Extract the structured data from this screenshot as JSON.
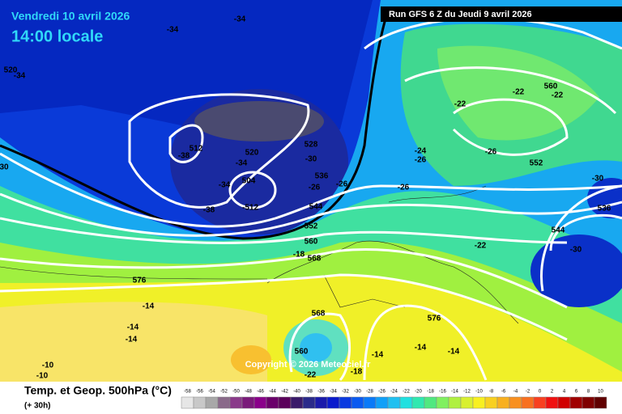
{
  "header": {
    "date": "Vendredi 10 avril 2026",
    "time": "14:00 locale",
    "run": "Run GFS 6 Z du Jeudi 9 avril 2026"
  },
  "copyright": "Copyright © 2026 Meteociel.fr",
  "footer": {
    "title": "Temp. et Geop. 500hPa (°C)",
    "lead": "(+ 30h)"
  },
  "map_labels": [
    "-34",
    "-34",
    "520",
    "-34",
    "-22",
    "560",
    "-22",
    "-22",
    "512",
    "-38",
    "520",
    "-34",
    "528",
    "-30",
    "-24",
    "-26",
    "-26",
    "552",
    "-30",
    "536",
    "504",
    "-34",
    "-26",
    "-26",
    "-26",
    "-512",
    "-38",
    "544",
    "536",
    "552",
    "544",
    "-22",
    "560",
    "-30",
    "-18",
    "568",
    "576",
    "-14",
    "568",
    "576",
    "-14",
    "-14",
    "560",
    "-14",
    "-14",
    "-14",
    "-10",
    "-10",
    "-22",
    "-18",
    "30"
  ],
  "legend": {
    "ticks": [
      -58,
      -56,
      -54,
      -52,
      -50,
      -48,
      -46,
      -44,
      -42,
      -40,
      -38,
      -36,
      -34,
      -32,
      -30,
      -28,
      -26,
      -24,
      -22,
      -20,
      -18,
      -16,
      -14,
      -12,
      -10,
      -8,
      -6,
      -4,
      -2,
      0,
      2,
      4,
      6,
      8,
      10
    ],
    "colors": [
      "#e6e6e6",
      "#c8c8c8",
      "#a8a8a8",
      "#8a6a8a",
      "#8a3a8a",
      "#7a1a7a",
      "#8a008a",
      "#6a006a",
      "#5a005a",
      "#3a1a6a",
      "#2a2a8a",
      "#1a1aaa",
      "#0a1acc",
      "#0a3ae0",
      "#0a5af0",
      "#0a7af8",
      "#10a0f8",
      "#20c0f0",
      "#20e0e0",
      "#30e8b0",
      "#50e880",
      "#80f060",
      "#b0f040",
      "#d8f030",
      "#f8f020",
      "#f8d020",
      "#f8b020",
      "#f89020",
      "#f87020",
      "#f84020",
      "#f01010",
      "#d00000",
      "#a00000",
      "#800000",
      "#600000"
    ]
  }
}
